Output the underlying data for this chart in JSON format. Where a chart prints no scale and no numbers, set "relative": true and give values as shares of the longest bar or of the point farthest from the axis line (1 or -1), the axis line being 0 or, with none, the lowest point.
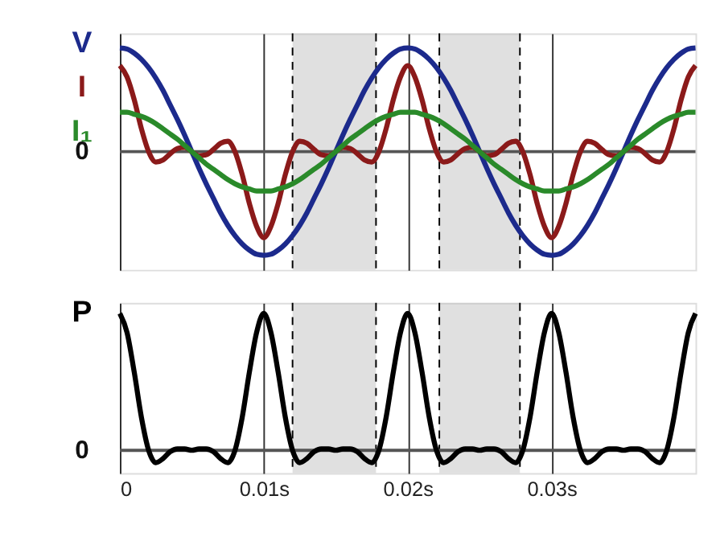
{
  "chart_data": [
    {
      "type": "line",
      "relative": true,
      "grid": "x",
      "legend": false,
      "tick_labels": false,
      "annotations": [
        "0"
      ],
      "x": [
        0,
        0.0005,
        0.001,
        0.0015,
        0.002,
        0.0025,
        0.003,
        0.0035,
        0.004,
        0.0045,
        0.005,
        0.0055,
        0.006,
        0.0065,
        0.007,
        0.0075,
        0.008,
        0.0085,
        0.009,
        0.0095,
        0.01,
        0.0105,
        0.011,
        0.0115,
        0.012,
        0.0125,
        0.013,
        0.0135,
        0.014,
        0.0145,
        0.015,
        0.0155,
        0.016,
        0.0165,
        0.017,
        0.0175,
        0.018,
        0.0185,
        0.019,
        0.0195,
        0.02,
        0.0205,
        0.021,
        0.0215,
        0.022,
        0.0225,
        0.023,
        0.0235,
        0.024,
        0.0245,
        0.025,
        0.0255,
        0.026,
        0.0265,
        0.027,
        0.0275,
        0.028,
        0.0285,
        0.029,
        0.0295,
        0.03,
        0.0305,
        0.031,
        0.0315,
        0.032,
        0.0325,
        0.033,
        0.0335,
        0.034,
        0.0345,
        0.035,
        0.0355,
        0.036,
        0.0365,
        0.037,
        0.0375,
        0.038,
        0.0385,
        0.039,
        0.0395,
        0.04
      ],
      "xlim": [
        0,
        0.04
      ],
      "xticks": [
        0,
        0.01,
        0.02,
        0.03
      ],
      "bands": [
        {
          "axis": "x",
          "from": 0.012,
          "to": 0.0178,
          "color": "#bbbbbb"
        },
        {
          "axis": "x",
          "from": 0.0222,
          "to": 0.0278,
          "color": "#bbbbbb"
        }
      ],
      "series": [
        {
          "name": "V",
          "color": "#1c2a8c",
          "values": [
            1,
            0.99,
            0.95,
            0.89,
            0.81,
            0.71,
            0.59,
            0.45,
            0.31,
            0.16,
            0,
            -0.16,
            -0.31,
            -0.45,
            -0.59,
            -0.71,
            -0.81,
            -0.89,
            -0.95,
            -0.99,
            -1,
            -0.99,
            -0.95,
            -0.89,
            -0.81,
            -0.71,
            -0.59,
            -0.45,
            -0.31,
            -0.16,
            0,
            0.16,
            0.31,
            0.45,
            0.59,
            0.71,
            0.81,
            0.89,
            0.95,
            0.99,
            1,
            0.99,
            0.95,
            0.89,
            0.81,
            0.71,
            0.59,
            0.45,
            0.31,
            0.16,
            0,
            -0.16,
            -0.31,
            -0.45,
            -0.59,
            -0.71,
            -0.81,
            -0.89,
            -0.95,
            -0.99,
            -1,
            -0.99,
            -0.95,
            -0.89,
            -0.81,
            -0.71,
            -0.59,
            -0.45,
            -0.31,
            -0.16,
            0,
            0.16,
            0.31,
            0.45,
            0.59,
            0.71,
            0.81,
            0.89,
            0.95,
            0.99,
            1
          ]
        },
        {
          "name": "I",
          "color": "#8b1a1a",
          "values": [
            0.83,
            0.72,
            0.5,
            0.22,
            0,
            -0.1,
            -0.08,
            -0.02,
            0.03,
            0.04,
            0,
            -0.04,
            -0.03,
            0.02,
            0.08,
            0.1,
            0,
            -0.22,
            -0.5,
            -0.72,
            -0.83,
            -0.72,
            -0.5,
            -0.22,
            0,
            0.1,
            0.08,
            0.02,
            -0.03,
            -0.04,
            0,
            0.04,
            0.03,
            -0.02,
            -0.08,
            -0.1,
            0,
            0.22,
            0.5,
            0.72,
            0.83,
            0.72,
            0.5,
            0.22,
            0,
            -0.1,
            -0.08,
            -0.02,
            0.03,
            0.04,
            0,
            -0.04,
            -0.03,
            0.02,
            0.08,
            0.1,
            0,
            -0.22,
            -0.5,
            -0.72,
            -0.83,
            -0.72,
            -0.5,
            -0.22,
            0,
            0.1,
            0.08,
            0.02,
            -0.03,
            -0.04,
            0,
            0.04,
            0.03,
            -0.02,
            -0.08,
            -0.1,
            0,
            0.22,
            0.5,
            0.72,
            0.83
          ]
        },
        {
          "name": "I₁",
          "color": "#2a8a2a",
          "values": [
            0.38,
            0.38,
            0.36,
            0.34,
            0.31,
            0.27,
            0.22,
            0.17,
            0.12,
            0.06,
            0,
            -0.06,
            -0.12,
            -0.17,
            -0.22,
            -0.27,
            -0.31,
            -0.34,
            -0.36,
            -0.38,
            -0.38,
            -0.38,
            -0.36,
            -0.34,
            -0.31,
            -0.27,
            -0.22,
            -0.17,
            -0.12,
            -0.06,
            0,
            0.06,
            0.12,
            0.17,
            0.22,
            0.27,
            0.31,
            0.34,
            0.36,
            0.38,
            0.38,
            0.38,
            0.36,
            0.34,
            0.31,
            0.27,
            0.22,
            0.17,
            0.12,
            0.06,
            0,
            -0.06,
            -0.12,
            -0.17,
            -0.22,
            -0.27,
            -0.31,
            -0.34,
            -0.36,
            -0.38,
            -0.38,
            -0.38,
            -0.36,
            -0.34,
            -0.31,
            -0.27,
            -0.22,
            -0.17,
            -0.12,
            -0.06,
            0,
            0.06,
            0.12,
            0.17,
            0.22,
            0.27,
            0.31,
            0.34,
            0.36,
            0.38,
            0.38
          ]
        }
      ]
    },
    {
      "type": "line",
      "relative": true,
      "grid": "x",
      "legend": false,
      "tick_labels": "x",
      "annotations": [
        "0"
      ],
      "x": [
        0,
        0.0005,
        0.001,
        0.0015,
        0.002,
        0.0025,
        0.003,
        0.0035,
        0.004,
        0.0045,
        0.005,
        0.0055,
        0.006,
        0.0065,
        0.007,
        0.0075,
        0.008,
        0.0085,
        0.009,
        0.0095,
        0.01,
        0.0105,
        0.011,
        0.0115,
        0.012,
        0.0125,
        0.013,
        0.0135,
        0.014,
        0.0145,
        0.015,
        0.0155,
        0.016,
        0.0165,
        0.017,
        0.0175,
        0.018,
        0.0185,
        0.019,
        0.0195,
        0.02,
        0.0205,
        0.021,
        0.0215,
        0.022,
        0.0225,
        0.023,
        0.0235,
        0.024,
        0.0245,
        0.025,
        0.0255,
        0.026,
        0.0265,
        0.027,
        0.0275,
        0.028,
        0.0285,
        0.029,
        0.0295,
        0.03,
        0.0305,
        0.031,
        0.0315,
        0.032,
        0.0325,
        0.033,
        0.0335,
        0.034,
        0.0345,
        0.035,
        0.0355,
        0.036,
        0.0365,
        0.037,
        0.0375,
        0.038,
        0.0385,
        0.039,
        0.0395,
        0.04
      ],
      "xlim": [
        0,
        0.04
      ],
      "xticks": [
        0,
        {
          "value": 0.01,
          "label": "0.01s"
        },
        {
          "value": 0.02,
          "label": "0.02s"
        },
        {
          "value": 0.03,
          "label": "0.03s"
        }
      ],
      "bands": [
        {
          "axis": "x",
          "from": 0.012,
          "to": 0.0178,
          "color": "#bbbbbb"
        },
        {
          "axis": "x",
          "from": 0.0222,
          "to": 0.0278,
          "color": "#bbbbbb"
        }
      ],
      "series": [
        {
          "name": "P",
          "color": "#000000",
          "values": [
            1,
            0.86,
            0.57,
            0.24,
            0,
            -0.09,
            -0.06,
            -0.01,
            0.01,
            0.01,
            0,
            0.01,
            0.01,
            -0.01,
            -0.06,
            -0.09,
            0,
            0.24,
            0.57,
            0.86,
            1,
            0.86,
            0.57,
            0.24,
            0,
            -0.09,
            -0.06,
            -0.01,
            0.01,
            0.01,
            0,
            0.01,
            0.01,
            -0.01,
            -0.06,
            -0.09,
            0,
            0.24,
            0.57,
            0.86,
            1,
            0.86,
            0.57,
            0.24,
            0,
            -0.09,
            -0.06,
            -0.01,
            0.01,
            0.01,
            0,
            0.01,
            0.01,
            -0.01,
            -0.06,
            -0.09,
            0,
            0.24,
            0.57,
            0.86,
            1,
            0.86,
            0.57,
            0.24,
            0,
            -0.09,
            -0.06,
            -0.01,
            0.01,
            0.01,
            0,
            0.01,
            0.01,
            -0.01,
            -0.06,
            -0.09,
            0,
            0.24,
            0.57,
            0.86,
            1
          ]
        }
      ]
    }
  ]
}
